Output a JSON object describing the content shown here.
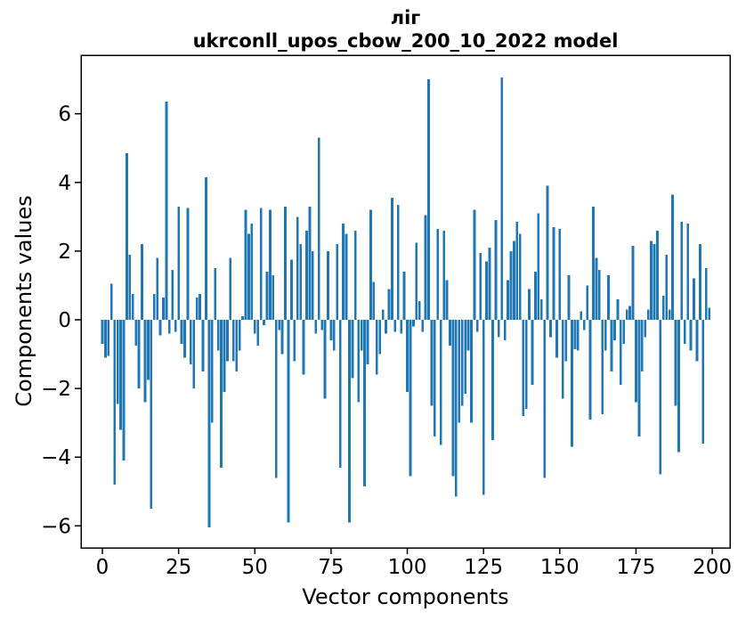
{
  "figure": {
    "title_line1": "ліг",
    "title_line2": "ukrconll_upos_cbow_200_10_2022 model",
    "xlabel": "Vector components",
    "ylabel": "Components values"
  },
  "chart_data": {
    "type": "bar",
    "title": "ліг — ukrconll_upos_cbow_200_10_2022 model",
    "xlabel": "Vector components",
    "ylabel": "Components values",
    "bar_color": "#1f77b4",
    "background_color": "#ffffff",
    "grid": false,
    "legend": false,
    "n_components": 200,
    "x_tick_labels": [
      "0",
      "25",
      "50",
      "75",
      "100",
      "125",
      "150",
      "175",
      "200"
    ],
    "x_ticks": [
      0,
      25,
      50,
      75,
      100,
      125,
      150,
      175,
      200
    ],
    "y_tick_labels": [
      "−6",
      "−4",
      "−2",
      "0",
      "2",
      "4",
      "6"
    ],
    "y_ticks": [
      -6,
      -4,
      -2,
      0,
      2,
      4,
      6
    ],
    "ylim": [
      -6.65,
      7.7
    ],
    "xlim": [
      -7,
      206.5
    ],
    "values": [
      -0.7,
      -1.1,
      -1.05,
      1.05,
      -4.8,
      -2.45,
      -3.2,
      -4.1,
      4.85,
      1.9,
      0.75,
      -0.75,
      -2.0,
      2.2,
      -2.4,
      -1.75,
      -5.5,
      0.75,
      1.8,
      -0.45,
      0.65,
      6.35,
      -0.4,
      1.45,
      -0.35,
      3.3,
      -0.7,
      -1.1,
      3.25,
      -1.3,
      -2.0,
      0.65,
      0.75,
      -1.5,
      4.15,
      -6.05,
      -3.0,
      1.5,
      -0.9,
      -4.3,
      -2.1,
      -1.2,
      1.8,
      -1.2,
      -1.5,
      -0.9,
      0.1,
      3.2,
      2.5,
      2.8,
      -0.4,
      -0.75,
      3.25,
      -0.15,
      1.4,
      3.2,
      1.3,
      -4.6,
      -0.3,
      -1.0,
      3.3,
      -5.9,
      1.75,
      -1.2,
      3.0,
      2.2,
      -1.6,
      2.6,
      3.3,
      2.0,
      -0.4,
      5.3,
      -0.3,
      -2.3,
      2.0,
      -0.6,
      -0.9,
      2.2,
      -4.3,
      2.8,
      2.5,
      -5.9,
      -1.7,
      2.6,
      -2.4,
      -0.9,
      -4.85,
      -1.3,
      3.2,
      1.1,
      -1.6,
      -1.0,
      0.3,
      -0.4,
      0.9,
      3.55,
      -0.35,
      3.35,
      -0.4,
      1.4,
      -2.1,
      -4.55,
      -0.2,
      2.25,
      0.55,
      -0.35,
      3.05,
      7.0,
      -2.5,
      -3.4,
      2.65,
      -3.65,
      2.6,
      1.15,
      -0.75,
      -4.55,
      -5.15,
      -3.0,
      -2.5,
      -2.15,
      -0.9,
      -3.0,
      3.2,
      -0.35,
      1.95,
      -5.1,
      1.7,
      2.1,
      -3.5,
      2.9,
      -0.5,
      7.05,
      -0.6,
      1.15,
      2.0,
      2.3,
      2.85,
      2.5,
      -2.8,
      -2.6,
      0.9,
      -1.9,
      1.4,
      3.1,
      0.6,
      -4.6,
      3.9,
      -0.5,
      2.7,
      -1.1,
      2.65,
      -2.3,
      -1.2,
      1.3,
      -3.7,
      -0.85,
      -0.9,
      0.25,
      -0.3,
      1.0,
      -2.9,
      3.3,
      1.8,
      1.45,
      -2.75,
      -0.9,
      1.3,
      -1.5,
      -0.6,
      0.6,
      -1.9,
      -0.7,
      0.3,
      0.4,
      2.15,
      -2.4,
      -3.4,
      -1.5,
      -0.5,
      0.3,
      2.3,
      2.2,
      2.6,
      -4.5,
      0.7,
      1.9,
      0.3,
      3.65,
      -2.5,
      -3.85,
      2.85,
      -0.7,
      2.8,
      -0.9,
      1.2,
      -1.2,
      2.2,
      -3.6,
      1.5,
      0.35
    ]
  }
}
